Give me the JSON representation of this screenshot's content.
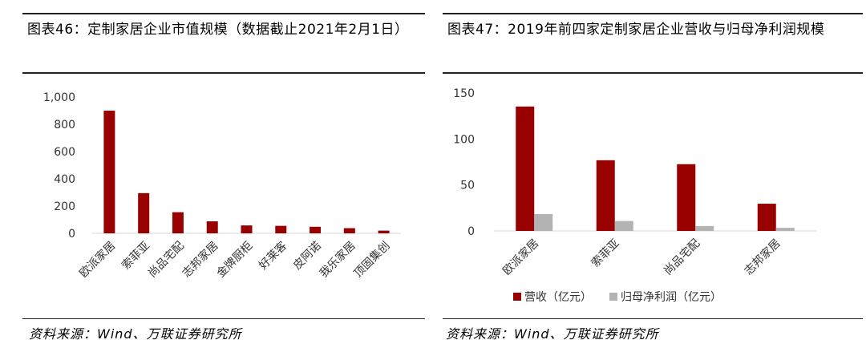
{
  "left": {
    "title": "图表46：定制家居企业市值规模（数据截止2021年2月1日）",
    "source": "资料来源：Wind、万联证券研究所"
  },
  "right": {
    "title": "图表47：2019年前四家定制家居企业营收与归母净利润规模",
    "source": "资料来源：Wind、万联证券研究所"
  },
  "chart_data": [
    {
      "type": "bar",
      "title": "图表46：定制家居企业市值规模（数据截止2021年2月1日）",
      "categories": [
        "欧派家居",
        "索菲亚",
        "尚品宅配",
        "志邦家居",
        "金牌厨柜",
        "好莱客",
        "皮阿诺",
        "我乐家居",
        "顶固集创"
      ],
      "series": [
        {
          "name": "",
          "values": [
            900,
            295,
            155,
            88,
            58,
            55,
            48,
            38,
            20
          ],
          "color": "#990000"
        }
      ],
      "yticks": [
        0,
        200,
        400,
        600,
        800,
        1000
      ],
      "ytick_labels": [
        "0",
        "200",
        "400",
        "600",
        "800",
        "1,000"
      ],
      "ylim": [
        0,
        1000
      ],
      "grid": false,
      "legend": "none"
    },
    {
      "type": "bar",
      "title": "图表47：2019年前四家定制家居企业营收与归母净利润规模",
      "categories": [
        "欧派家居",
        "索菲亚",
        "尚品宅配",
        "志邦家居"
      ],
      "series": [
        {
          "name": "营收（亿元）",
          "values": [
            135.3,
            76.9,
            72.6,
            29.6
          ],
          "color": "#990000"
        },
        {
          "name": "归母净利润（亿元）",
          "values": [
            18.4,
            10.8,
            5.3,
            3.4
          ],
          "color": "#b3b3b3"
        }
      ],
      "yticks": [
        0,
        50,
        100,
        150
      ],
      "ytick_labels": [
        "0",
        "50",
        "100",
        "150"
      ],
      "ylim": [
        0,
        150
      ],
      "grid": false,
      "legend": "bottom"
    }
  ]
}
